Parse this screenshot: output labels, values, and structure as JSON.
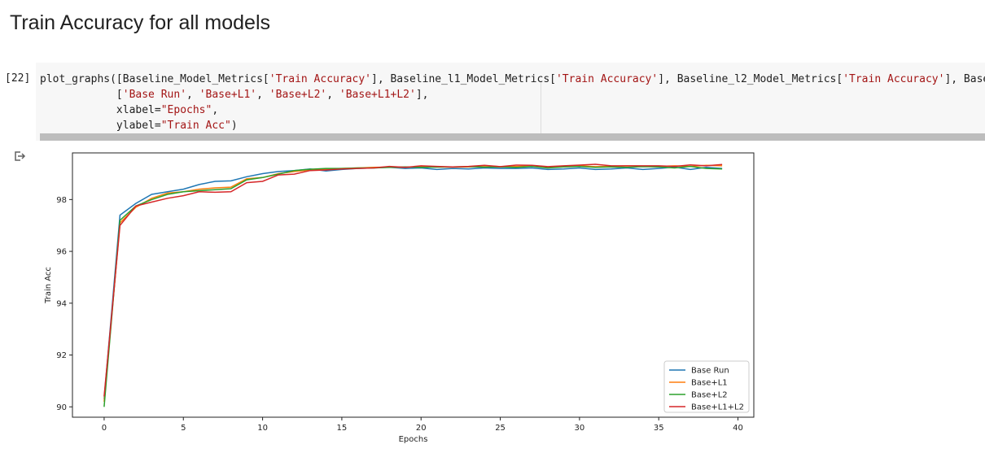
{
  "section": {
    "title": "Train Accuracy for all models"
  },
  "cell": {
    "execution_count": "[22]",
    "code_lines": [
      [
        {
          "t": "plot_graphs([Baseline_Model_Metrics["
        },
        {
          "t": "'Train Accuracy'",
          "s": 1
        },
        {
          "t": "], Baseline_l1_Model_Metrics["
        },
        {
          "t": "'Train Accuracy'",
          "s": 1
        },
        {
          "t": "], Baseline_l2_Model_Metrics["
        },
        {
          "t": "'Train Accuracy'",
          "s": 1
        },
        {
          "t": "], Baseli"
        }
      ],
      [
        {
          "t": "            ["
        },
        {
          "t": "'Base Run'",
          "s": 1
        },
        {
          "t": ", "
        },
        {
          "t": "'Base+L1'",
          "s": 1
        },
        {
          "t": ", "
        },
        {
          "t": "'Base+L2'",
          "s": 1
        },
        {
          "t": ", "
        },
        {
          "t": "'Base+L1+L2'",
          "s": 1
        },
        {
          "t": "],"
        }
      ],
      [
        {
          "t": "            xlabel="
        },
        {
          "t": "\"Epochs\"",
          "s": 1
        },
        {
          "t": ","
        }
      ],
      [
        {
          "t": "            ylabel="
        },
        {
          "t": "\"Train Acc\"",
          "s": 1
        },
        {
          "t": ")"
        }
      ]
    ]
  },
  "output": {
    "icon": "output-arrow-icon"
  },
  "chart_data": {
    "type": "line",
    "title": "",
    "xlabel": "Epochs",
    "ylabel": "Train Acc",
    "xlim": [
      -2,
      41
    ],
    "ylim": [
      89.6,
      99.8
    ],
    "xticks": [
      0,
      5,
      10,
      15,
      20,
      25,
      30,
      35,
      40
    ],
    "yticks": [
      90,
      92,
      94,
      96,
      98
    ],
    "grid": false,
    "legend_position": "lower-right",
    "x": [
      0,
      1,
      2,
      3,
      4,
      5,
      6,
      7,
      8,
      9,
      10,
      11,
      12,
      13,
      14,
      15,
      16,
      17,
      18,
      19,
      20,
      21,
      22,
      23,
      24,
      25,
      26,
      27,
      28,
      29,
      30,
      31,
      32,
      33,
      34,
      35,
      36,
      37,
      38,
      39
    ],
    "series": [
      {
        "name": "Base Run",
        "color": "#1f77b4",
        "values": [
          90.3,
          97.4,
          97.85,
          98.2,
          98.3,
          98.4,
          98.58,
          98.7,
          98.72,
          98.88,
          99.0,
          99.08,
          99.12,
          99.18,
          99.1,
          99.16,
          99.2,
          99.22,
          99.24,
          99.2,
          99.22,
          99.16,
          99.2,
          99.18,
          99.22,
          99.2,
          99.2,
          99.22,
          99.16,
          99.18,
          99.22,
          99.16,
          99.18,
          99.22,
          99.16,
          99.2,
          99.25,
          99.16,
          99.24,
          99.2
        ]
      },
      {
        "name": "Base+L1",
        "color": "#ff7f0e",
        "values": [
          90.2,
          97.1,
          97.7,
          98.05,
          98.25,
          98.3,
          98.4,
          98.45,
          98.48,
          98.8,
          98.85,
          99.0,
          99.08,
          99.14,
          99.18,
          99.2,
          99.22,
          99.24,
          99.25,
          99.24,
          99.28,
          99.26,
          99.25,
          99.26,
          99.3,
          99.27,
          99.28,
          99.3,
          99.26,
          99.28,
          99.3,
          99.27,
          99.28,
          99.3,
          99.29,
          99.28,
          99.3,
          99.28,
          99.32,
          99.3
        ]
      },
      {
        "name": "Base+L2",
        "color": "#2ca02c",
        "values": [
          90.0,
          97.2,
          97.75,
          98.0,
          98.2,
          98.3,
          98.34,
          98.38,
          98.42,
          98.76,
          98.85,
          98.98,
          99.12,
          99.17,
          99.2,
          99.2,
          99.22,
          99.22,
          99.24,
          99.26,
          99.24,
          99.25,
          99.26,
          99.27,
          99.25,
          99.26,
          99.24,
          99.28,
          99.22,
          99.26,
          99.28,
          99.24,
          99.26,
          99.24,
          99.27,
          99.26,
          99.22,
          99.28,
          99.2,
          99.18
        ]
      },
      {
        "name": "Base+L1+L2",
        "color": "#d62728",
        "values": [
          90.4,
          97.0,
          97.75,
          97.9,
          98.05,
          98.15,
          98.3,
          98.28,
          98.3,
          98.65,
          98.7,
          98.95,
          98.98,
          99.12,
          99.14,
          99.18,
          99.2,
          99.22,
          99.28,
          99.24,
          99.3,
          99.28,
          99.26,
          99.28,
          99.32,
          99.27,
          99.33,
          99.32,
          99.27,
          99.3,
          99.33,
          99.36,
          99.3,
          99.3,
          99.3,
          99.3,
          99.28,
          99.34,
          99.3,
          99.35
        ]
      }
    ]
  }
}
